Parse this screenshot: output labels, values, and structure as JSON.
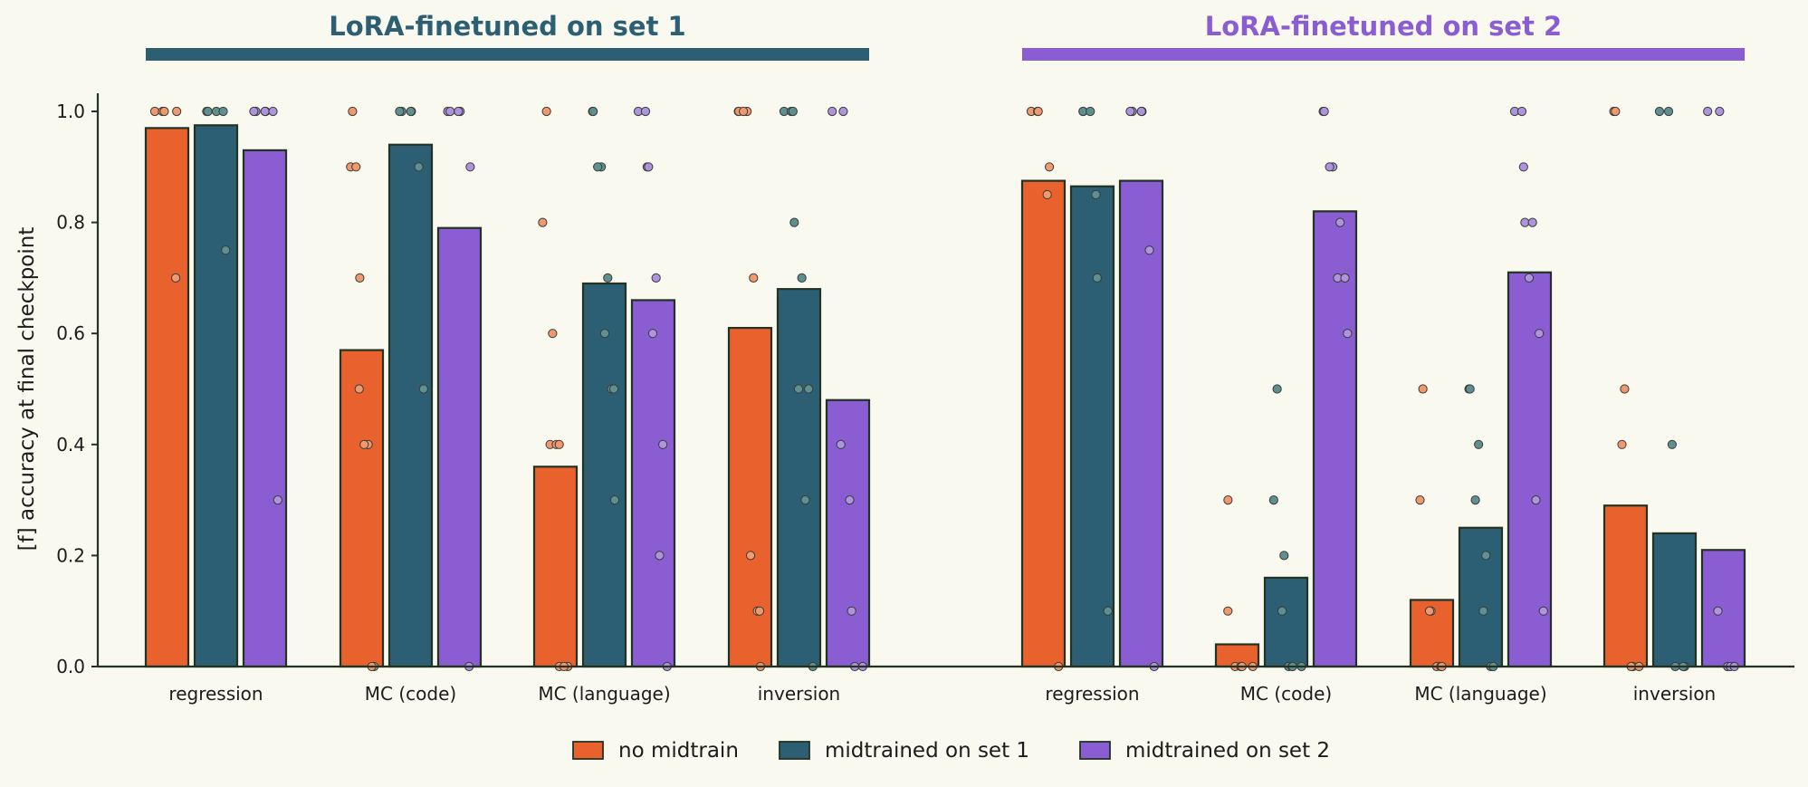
{
  "chart_data": {
    "type": "bar",
    "ylabel": "[f] accuracy at final checkpoint",
    "ylim": [
      0,
      1.03
    ],
    "yticks": [
      "0.0",
      "0.2",
      "0.4",
      "0.6",
      "0.8",
      "1.0"
    ],
    "categories": [
      "regression",
      "MC (code)",
      "MC (language)",
      "inversion"
    ],
    "panels": [
      {
        "title": "LoRA-finetuned on set 1",
        "color": "#2c5f73",
        "series": [
          {
            "name": "no midtrain",
            "values": [
              0.97,
              0.57,
              0.36,
              0.61
            ],
            "points": [
              [
                1,
                1,
                1,
                1,
                0.7
              ],
              [
                1,
                0.9,
                0.9,
                0.7,
                0.5,
                0.4,
                0.4,
                0,
                0
              ],
              [
                1,
                0.8,
                0.6,
                0.4,
                0.4,
                0.4,
                0,
                0,
                0
              ],
              [
                1,
                1,
                1,
                1,
                0.7,
                0.2,
                0.1,
                0.1,
                0
              ]
            ]
          },
          {
            "name": "midtrained on set 1",
            "values": [
              0.975,
              0.94,
              0.69,
              0.68
            ],
            "points": [
              [
                1,
                1,
                1,
                1,
                0.75
              ],
              [
                1,
                1,
                1,
                1,
                0.9,
                0.5
              ],
              [
                1,
                1,
                0.9,
                0.9,
                0.7,
                0.6,
                0.5,
                0.5,
                0.3
              ],
              [
                1,
                1,
                1,
                0.8,
                0.7,
                0.5,
                0.5,
                0.3,
                0
              ]
            ]
          },
          {
            "name": "midtrained on set 2",
            "values": [
              0.93,
              0.79,
              0.66,
              0.48
            ],
            "points": [
              [
                1,
                1,
                1,
                1,
                1,
                0.3
              ],
              [
                1,
                1,
                1,
                1,
                0.9,
                0
              ],
              [
                1,
                1,
                0.9,
                0.9,
                0.7,
                0.6,
                0.4,
                0.2,
                0
              ],
              [
                1,
                1,
                0.4,
                0.3,
                0.1,
                0,
                0
              ]
            ]
          }
        ]
      },
      {
        "title": "LoRA-finetuned on set 2",
        "color": "#8a5dd3",
        "series": [
          {
            "name": "no midtrain",
            "values": [
              0.875,
              0.04,
              0.12,
              0.29
            ],
            "points": [
              [
                1,
                1,
                1,
                0.9,
                0.85,
                0
              ],
              [
                0.3,
                0.1,
                0,
                0,
                0,
                0
              ],
              [
                0.5,
                0.3,
                0.1,
                0.1,
                0,
                0,
                0
              ],
              [
                1,
                1,
                0.5,
                0.4,
                0,
                0,
                0
              ]
            ]
          },
          {
            "name": "midtrained on set 1",
            "values": [
              0.865,
              0.16,
              0.25,
              0.24
            ],
            "points": [
              [
                1,
                1,
                1,
                0.85,
                0.7,
                0.1
              ],
              [
                0.5,
                0.3,
                0.2,
                0.1,
                0,
                0,
                0,
                0
              ],
              [
                0.5,
                0.5,
                0.4,
                0.3,
                0.2,
                0.1,
                0,
                0
              ],
              [
                1,
                1,
                0.4,
                0,
                0,
                0
              ]
            ]
          },
          {
            "name": "midtrained on set 2",
            "values": [
              0.875,
              0.82,
              0.71,
              0.21
            ],
            "points": [
              [
                1,
                1,
                1,
                1,
                0.75,
                0
              ],
              [
                1,
                1,
                0.9,
                0.9,
                0.8,
                0.7,
                0.7,
                0.6
              ],
              [
                1,
                1,
                0.9,
                0.8,
                0.8,
                0.7,
                0.6,
                0.3,
                0.1
              ],
              [
                1,
                1,
                0.1,
                0,
                0,
                0
              ]
            ]
          }
        ]
      }
    ],
    "legend": {
      "placement": "bottom-center",
      "entries": [
        {
          "label": "no midtrain",
          "color": "#e9622e"
        },
        {
          "label": "midtrained on set 1",
          "color": "#2c5f73"
        },
        {
          "label": "midtrained on set 2",
          "color": "#8a5dd3"
        }
      ]
    },
    "series_colors": [
      "#e9622e",
      "#2c5f73",
      "#8a5dd3"
    ],
    "point_colors": [
      "#f0996d",
      "#5f9090",
      "#ad94dc"
    ],
    "background": "#f9f9ef",
    "grid": false
  }
}
